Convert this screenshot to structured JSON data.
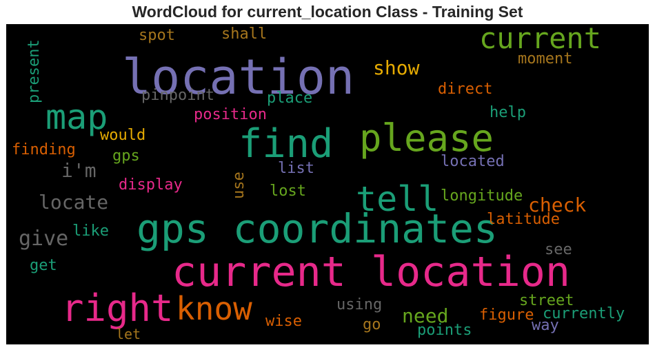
{
  "title": "WordCloud for current_location Class - Training Set",
  "palette": {
    "teal": "#1b9e77",
    "orange": "#d95f02",
    "purple": "#7570b3",
    "pink": "#e7298a",
    "green": "#66a61e",
    "gold": "#e6ab02",
    "brown": "#a6761d",
    "gray": "#666666"
  },
  "words": [
    {
      "text": "location",
      "color": "#7570b3"
    },
    {
      "text": "current location",
      "color": "#e7298a"
    },
    {
      "text": "gps coordinates",
      "color": "#1b9e77"
    },
    {
      "text": "find",
      "color": "#1b9e77"
    },
    {
      "text": "please",
      "color": "#66a61e"
    },
    {
      "text": "right",
      "color": "#e7298a"
    },
    {
      "text": "know",
      "color": "#d95f02"
    },
    {
      "text": "map",
      "color": "#1b9e77"
    },
    {
      "text": "tell",
      "color": "#1b9e77"
    },
    {
      "text": "current",
      "color": "#66a61e"
    },
    {
      "text": "locate",
      "color": "#666666"
    },
    {
      "text": "give",
      "color": "#666666"
    },
    {
      "text": "show",
      "color": "#e6ab02"
    },
    {
      "text": "check",
      "color": "#d95f02"
    },
    {
      "text": "need",
      "color": "#66a61e"
    },
    {
      "text": "i'm",
      "color": "#666666"
    },
    {
      "text": "moment",
      "color": "#a6761d"
    },
    {
      "text": "direct",
      "color": "#d95f02"
    },
    {
      "text": "pinpoint",
      "color": "#666666"
    },
    {
      "text": "place",
      "color": "#1b9e77"
    },
    {
      "text": "position",
      "color": "#e7298a"
    },
    {
      "text": "help",
      "color": "#1b9e77"
    },
    {
      "text": "would",
      "color": "#e6ab02"
    },
    {
      "text": "finding",
      "color": "#d95f02"
    },
    {
      "text": "gps",
      "color": "#66a61e"
    },
    {
      "text": "list",
      "color": "#7570b3"
    },
    {
      "text": "located",
      "color": "#7570b3"
    },
    {
      "text": "display",
      "color": "#e7298a"
    },
    {
      "text": "lost",
      "color": "#66a61e"
    },
    {
      "text": "longitude",
      "color": "#66a61e"
    },
    {
      "text": "latitude",
      "color": "#d95f02"
    },
    {
      "text": "like",
      "color": "#1b9e77"
    },
    {
      "text": "see",
      "color": "#666666"
    },
    {
      "text": "get",
      "color": "#1b9e77"
    },
    {
      "text": "using",
      "color": "#666666"
    },
    {
      "text": "street",
      "color": "#66a61e"
    },
    {
      "text": "currently",
      "color": "#1b9e77"
    },
    {
      "text": "figure",
      "color": "#d95f02"
    },
    {
      "text": "way",
      "color": "#7570b3"
    },
    {
      "text": "wise",
      "color": "#d95f02"
    },
    {
      "text": "go",
      "color": "#a6761d"
    },
    {
      "text": "points",
      "color": "#1b9e77"
    },
    {
      "text": "let",
      "color": "#a6761d"
    },
    {
      "text": "spot",
      "color": "#a6761d"
    },
    {
      "text": "shall",
      "color": "#a6761d"
    },
    {
      "text": "present",
      "color": "#1b9e77"
    },
    {
      "text": "use",
      "color": "#a6761d"
    }
  ]
}
